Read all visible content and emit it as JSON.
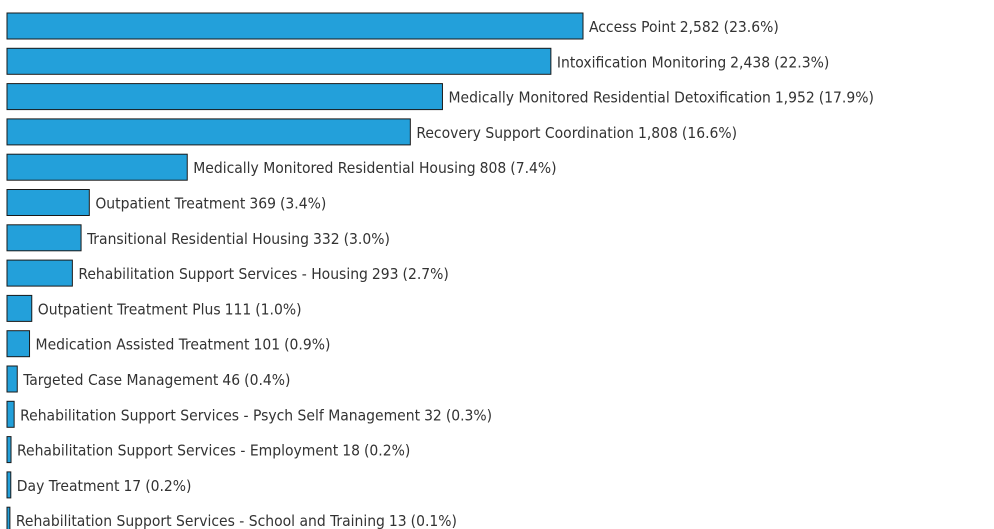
{
  "chart_data": {
    "type": "bar",
    "orientation": "horizontal",
    "color": "#23a0da",
    "edge_color": "#1a1a1a",
    "categories": [
      "Access Point",
      "Intoxification Monitoring",
      "Medically Monitored Residential Detoxification",
      "Recovery Support Coordination",
      "Medically Monitored Residential Housing",
      "Outpatient Treatment",
      "Transitional Residential Housing",
      "Rehabilitation Support Services - Housing",
      "Outpatient Treatment Plus",
      "Medication Assisted Treatment",
      "Targeted Case Management",
      "Rehabilitation Support Services - Psych Self Management",
      "Rehabilitation Support Services - Employment",
      "Day Treatment",
      "Rehabilitation Support Services - School and Training"
    ],
    "values": [
      2582,
      2438,
      1952,
      1808,
      808,
      369,
      332,
      293,
      111,
      101,
      46,
      32,
      18,
      17,
      13
    ],
    "value_labels": [
      "2,582",
      "2,438",
      "1,952",
      "1,808",
      "808",
      "369",
      "332",
      "293",
      "111",
      "101",
      "46",
      "32",
      "18",
      "17",
      "13"
    ],
    "shares": [
      23.6,
      22.3,
      17.9,
      16.6,
      7.4,
      3.4,
      3.0,
      2.7,
      1.0,
      0.9,
      0.4,
      0.3,
      0.2,
      0.2,
      0.1
    ],
    "share_labels": [
      "(23.6%)",
      "(22.3%)",
      "(17.9%)",
      "(16.6%)",
      "(7.4%)",
      "(3.4%)",
      "(3.0%)",
      "(2.7%)",
      "(1.0%)",
      "(0.9%)",
      "(0.4%)",
      "(0.3%)",
      "(0.2%)",
      "(0.2%)",
      "(0.1%)"
    ]
  }
}
